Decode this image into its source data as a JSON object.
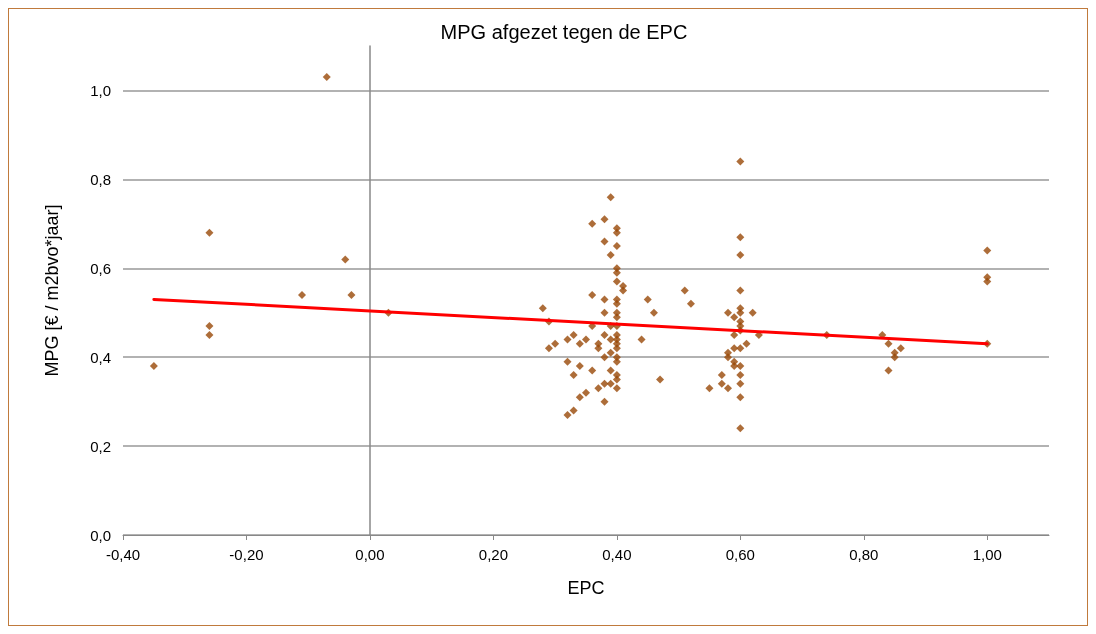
{
  "chart_data": {
    "type": "scatter",
    "title": "MPG afgezet tegen de EPC",
    "xlabel": "EPC",
    "ylabel": "MPG [€ / m2bvo*jaar]",
    "xlim": [
      -0.4,
      1.1
    ],
    "ylim": [
      0,
      1.1
    ],
    "xticks": [
      {
        "value": -0.4,
        "label": "-0,40"
      },
      {
        "value": -0.2,
        "label": "-0,20"
      },
      {
        "value": 0,
        "label": "0,00"
      },
      {
        "value": 0.2,
        "label": "0,20"
      },
      {
        "value": 0.4,
        "label": "0,40"
      },
      {
        "value": 0.6,
        "label": "0,60"
      },
      {
        "value": 0.8,
        "label": "0,80"
      },
      {
        "value": 1,
        "label": "1,00"
      }
    ],
    "yticks": [
      {
        "value": 0,
        "label": "0,0"
      },
      {
        "value": 0.2,
        "label": "0,2"
      },
      {
        "value": 0.4,
        "label": "0,4"
      },
      {
        "value": 0.6,
        "label": "0,6"
      },
      {
        "value": 0.8,
        "label": "0,8"
      },
      {
        "value": 1,
        "label": "1,0"
      }
    ],
    "grid": "y",
    "legend": false,
    "marker": "diamond",
    "series": [
      {
        "color": "#984807",
        "x": [
          -0.35,
          -0.26,
          -0.26,
          -0.26,
          -0.11,
          -0.07,
          -0.04,
          -0.03,
          0.03,
          0.28,
          0.29,
          0.29,
          0.3,
          0.32,
          0.32,
          0.32,
          0.33,
          0.33,
          0.33,
          0.34,
          0.34,
          0.34,
          0.35,
          0.35,
          0.36,
          0.36,
          0.36,
          0.36,
          0.37,
          0.37,
          0.37,
          0.38,
          0.38,
          0.38,
          0.38,
          0.38,
          0.38,
          0.38,
          0.38,
          0.39,
          0.39,
          0.39,
          0.39,
          0.39,
          0.39,
          0.39,
          0.4,
          0.4,
          0.4,
          0.4,
          0.4,
          0.4,
          0.4,
          0.4,
          0.4,
          0.4,
          0.4,
          0.4,
          0.4,
          0.4,
          0.4,
          0.4,
          0.4,
          0.4,
          0.4,
          0.4,
          0.41,
          0.41,
          0.44,
          0.45,
          0.46,
          0.47,
          0.51,
          0.52,
          0.55,
          0.57,
          0.57,
          0.58,
          0.58,
          0.58,
          0.58,
          0.59,
          0.59,
          0.59,
          0.59,
          0.59,
          0.6,
          0.6,
          0.6,
          0.6,
          0.6,
          0.6,
          0.6,
          0.6,
          0.6,
          0.6,
          0.6,
          0.6,
          0.6,
          0.6,
          0.6,
          0.61,
          0.62,
          0.63,
          0.74,
          0.83,
          0.84,
          0.84,
          0.85,
          0.85,
          0.86,
          1.0,
          1.0,
          1.0,
          1.0
        ],
        "values": [
          0.38,
          0.68,
          0.47,
          0.45,
          0.54,
          1.03,
          0.62,
          0.54,
          0.5,
          0.51,
          0.48,
          0.42,
          0.43,
          0.44,
          0.39,
          0.27,
          0.28,
          0.36,
          0.45,
          0.43,
          0.38,
          0.31,
          0.32,
          0.44,
          0.7,
          0.54,
          0.47,
          0.37,
          0.43,
          0.42,
          0.33,
          0.71,
          0.66,
          0.53,
          0.5,
          0.45,
          0.4,
          0.34,
          0.3,
          0.76,
          0.63,
          0.47,
          0.44,
          0.41,
          0.37,
          0.34,
          0.69,
          0.68,
          0.65,
          0.6,
          0.59,
          0.57,
          0.53,
          0.52,
          0.5,
          0.49,
          0.47,
          0.45,
          0.44,
          0.43,
          0.42,
          0.4,
          0.39,
          0.36,
          0.35,
          0.33,
          0.56,
          0.55,
          0.44,
          0.53,
          0.5,
          0.35,
          0.55,
          0.52,
          0.33,
          0.36,
          0.34,
          0.41,
          0.4,
          0.33,
          0.5,
          0.49,
          0.45,
          0.42,
          0.39,
          0.38,
          0.84,
          0.67,
          0.63,
          0.55,
          0.51,
          0.5,
          0.48,
          0.47,
          0.46,
          0.42,
          0.38,
          0.36,
          0.34,
          0.31,
          0.24,
          0.43,
          0.5,
          0.45,
          0.45,
          0.45,
          0.43,
          0.37,
          0.41,
          0.4,
          0.42,
          0.64,
          0.58,
          0.57,
          0.43
        ]
      },
      {
        "type": "line",
        "color": "#ff0000",
        "marker": "none",
        "line_style": "solid",
        "x": [
          -0.35,
          1.0
        ],
        "values": [
          0.53,
          0.43
        ]
      }
    ]
  }
}
